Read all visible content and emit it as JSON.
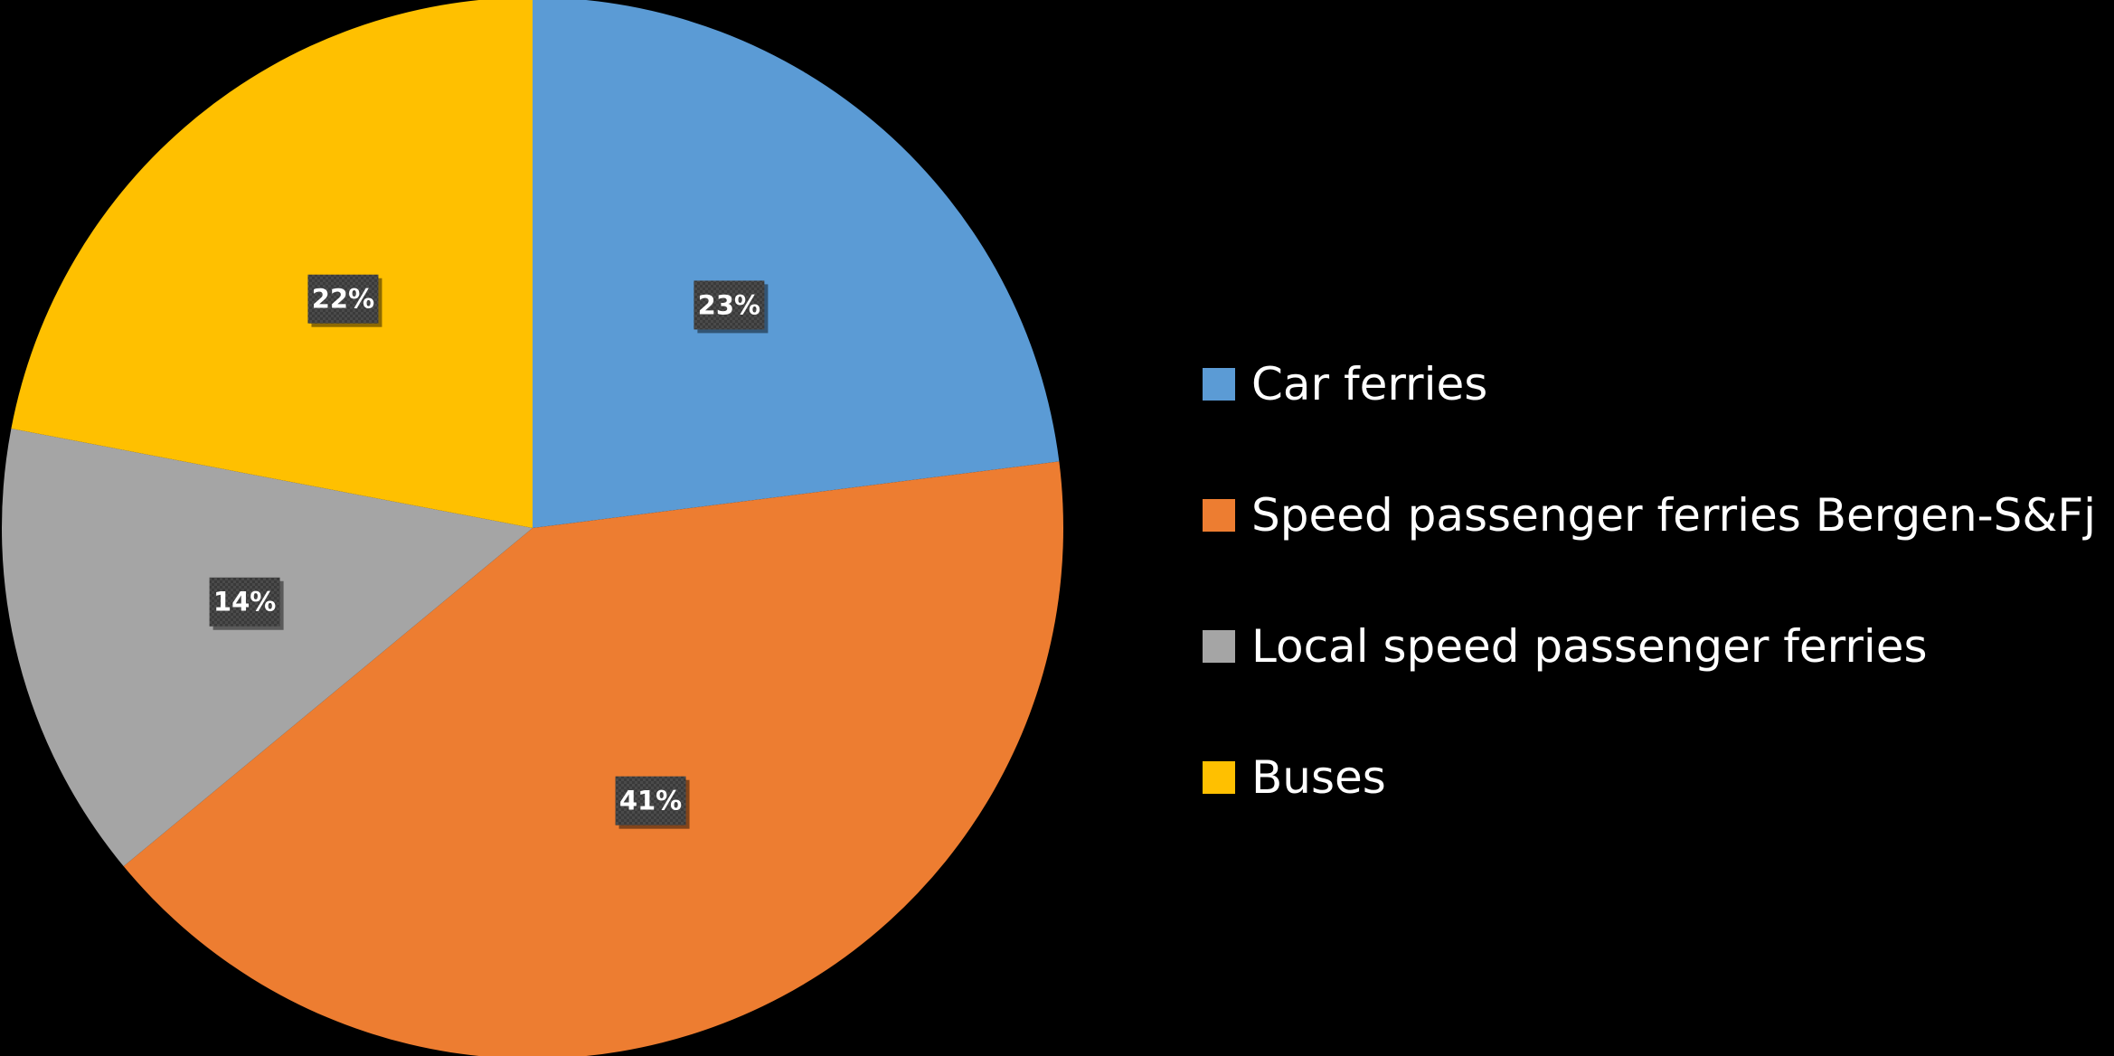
{
  "chart_data": {
    "type": "pie",
    "categories": [
      "Car ferries",
      "Speed passenger ferries Bergen-S&Fj",
      "Local speed passenger ferries",
      "Buses"
    ],
    "values": [
      23,
      41,
      14,
      22
    ],
    "data_labels": [
      "23%",
      "41%",
      "14%",
      "22%"
    ],
    "colors": [
      "#5B9BD5",
      "#ED7D31",
      "#A5A5A5",
      "#FFC000"
    ],
    "start_angle": "12 o'clock",
    "direction": "clockwise",
    "legend_position": "right",
    "background": "#000000"
  },
  "legend": {
    "items": [
      {
        "label": "Car ferries",
        "color": "#5B9BD5"
      },
      {
        "label": "Speed passenger ferries Bergen-S&Fj",
        "color": "#ED7D31"
      },
      {
        "label": "Local speed passenger ferries",
        "color": "#A5A5A5"
      },
      {
        "label": "Buses",
        "color": "#FFC000"
      }
    ]
  }
}
